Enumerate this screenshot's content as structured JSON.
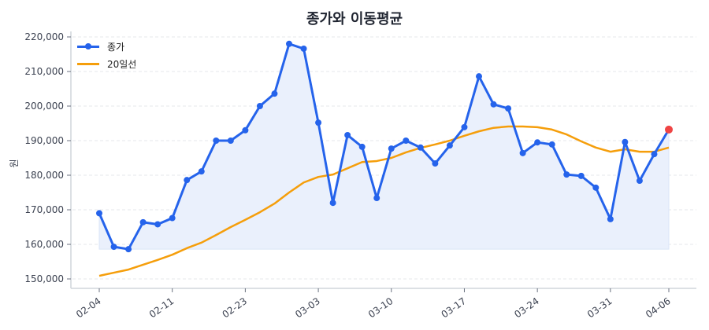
{
  "chart_data": {
    "type": "line",
    "title": "종가와 이동평균",
    "xlabel": "",
    "ylabel": "원",
    "ylim": [
      148000,
      222500
    ],
    "yticks": [
      150000,
      160000,
      170000,
      180000,
      190000,
      200000,
      210000,
      220000
    ],
    "ytick_labels": [
      "150,000",
      "160,000",
      "170,000",
      "180,000",
      "190,000",
      "200,000",
      "210,000",
      "220,000"
    ],
    "xtick_indices": [
      0,
      5,
      10,
      15,
      20,
      25,
      30,
      35,
      39
    ],
    "xtick_labels": [
      "02-04",
      "02-11",
      "02-23",
      "03-03",
      "03-10",
      "03-17",
      "03-24",
      "03-31",
      "04-06"
    ],
    "grid": "horizontal dashed",
    "legend_position": "upper left",
    "colors": {
      "close": "#2563eb",
      "ma20": "#f59e0b",
      "fill": "#eaf0fc",
      "last_point": "#ef4444",
      "grid": "#e5e7eb",
      "axis": "#d1d5db"
    },
    "fill_baseline": 158600,
    "series": [
      {
        "name": "종가",
        "marker": "circle",
        "values": [
          169000,
          159300,
          158600,
          166400,
          165800,
          167600,
          178600,
          181100,
          190000,
          190000,
          193000,
          200000,
          203600,
          218000,
          216600,
          195200,
          172000,
          191600,
          188200,
          173400,
          187700,
          190000,
          188000,
          183400,
          188600,
          193900,
          208600,
          200500,
          199300,
          186400,
          189500,
          188900,
          180200,
          179800,
          176400,
          167300,
          189600,
          178400,
          186100,
          193200
        ]
      },
      {
        "name": "20일선",
        "marker": "none",
        "values": [
          150900,
          151800,
          152700,
          154100,
          155500,
          157000,
          158900,
          160500,
          162700,
          165000,
          167100,
          169300,
          171800,
          175000,
          177900,
          179500,
          180200,
          182000,
          183800,
          184100,
          185000,
          186600,
          187900,
          188900,
          190000,
          191400,
          192700,
          193700,
          194100,
          194100,
          193900,
          193200,
          191800,
          189800,
          188000,
          186800,
          187500,
          186800,
          186800,
          188000
        ]
      }
    ]
  },
  "legend": {
    "items": [
      {
        "label": "종가"
      },
      {
        "label": "20일선"
      }
    ]
  }
}
